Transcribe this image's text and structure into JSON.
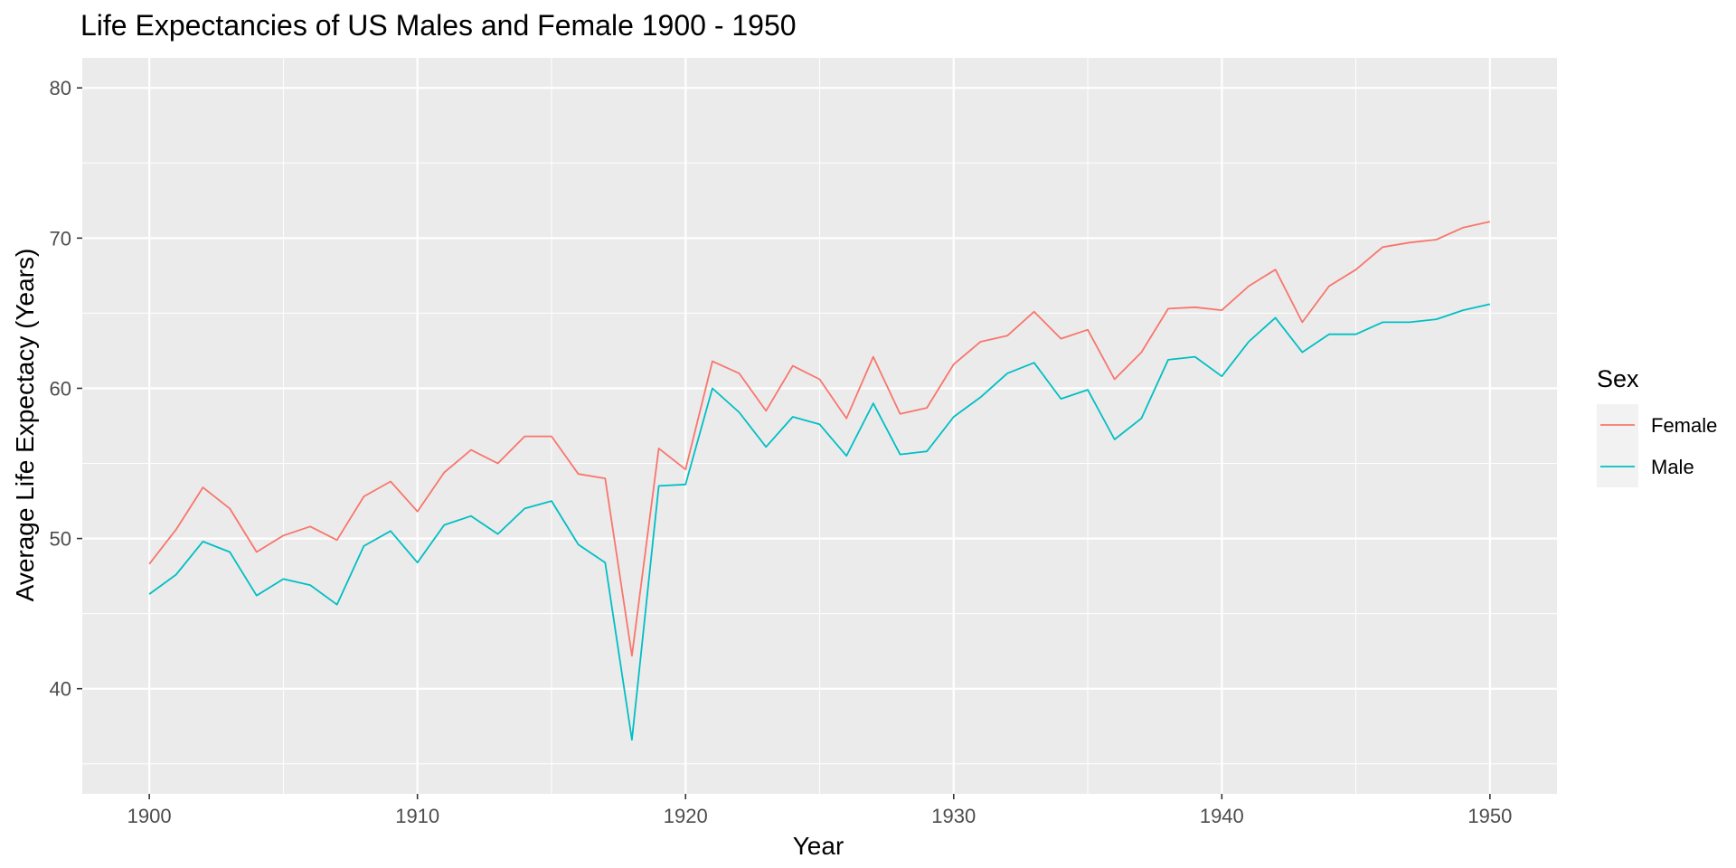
{
  "chart_data": {
    "type": "line",
    "title": "Life Expectancies of US Males and Female 1900 - 1950",
    "xlabel": "Year",
    "ylabel": "Average Life Expectacy (Years)",
    "xlim": [
      1897.5,
      1952.5
    ],
    "ylim": [
      33,
      82
    ],
    "x_ticks": [
      1900,
      1910,
      1920,
      1930,
      1940,
      1950
    ],
    "y_ticks": [
      40,
      50,
      60,
      70,
      80
    ],
    "x_minor": [
      1905,
      1915,
      1925,
      1935,
      1945
    ],
    "y_minor": [
      35,
      45,
      55,
      65,
      75
    ],
    "grid": true,
    "panel_background": "#ebebeb",
    "grid_color": "#ffffff",
    "legend": {
      "title": "Sex",
      "position": "right",
      "entries": [
        "Female",
        "Male"
      ]
    },
    "x": [
      1900,
      1901,
      1902,
      1903,
      1904,
      1905,
      1906,
      1907,
      1908,
      1909,
      1910,
      1911,
      1912,
      1913,
      1914,
      1915,
      1916,
      1917,
      1918,
      1919,
      1920,
      1921,
      1922,
      1923,
      1924,
      1925,
      1926,
      1927,
      1928,
      1929,
      1930,
      1931,
      1932,
      1933,
      1934,
      1935,
      1936,
      1937,
      1938,
      1939,
      1940,
      1941,
      1942,
      1943,
      1944,
      1945,
      1946,
      1947,
      1948,
      1949,
      1950
    ],
    "series": [
      {
        "name": "Female",
        "color": "#f8766d",
        "values": [
          48.3,
          50.6,
          53.4,
          52.0,
          49.1,
          50.2,
          50.8,
          49.9,
          52.8,
          53.8,
          51.8,
          54.4,
          55.9,
          55.0,
          56.8,
          56.8,
          54.3,
          54.0,
          42.2,
          56.0,
          54.6,
          61.8,
          61.0,
          58.5,
          61.5,
          60.6,
          58.0,
          62.1,
          58.3,
          58.7,
          61.6,
          63.1,
          63.5,
          65.1,
          63.3,
          63.9,
          60.6,
          62.4,
          65.3,
          65.4,
          65.2,
          66.8,
          67.9,
          64.4,
          66.8,
          67.9,
          69.4,
          69.7,
          69.9,
          70.7,
          71.1
        ]
      },
      {
        "name": "Male",
        "color": "#00bfc4",
        "values": [
          46.3,
          47.6,
          49.8,
          49.1,
          46.2,
          47.3,
          46.9,
          45.6,
          49.5,
          50.5,
          48.4,
          50.9,
          51.5,
          50.3,
          52.0,
          52.5,
          49.6,
          48.4,
          36.6,
          53.5,
          53.6,
          60.0,
          58.4,
          56.1,
          58.1,
          57.6,
          55.5,
          59.0,
          55.6,
          55.8,
          58.1,
          59.4,
          61.0,
          61.7,
          59.3,
          59.9,
          56.6,
          58.0,
          61.9,
          62.1,
          60.8,
          63.1,
          64.7,
          62.4,
          63.6,
          63.6,
          64.4,
          64.4,
          64.6,
          65.2,
          65.6
        ]
      }
    ]
  }
}
